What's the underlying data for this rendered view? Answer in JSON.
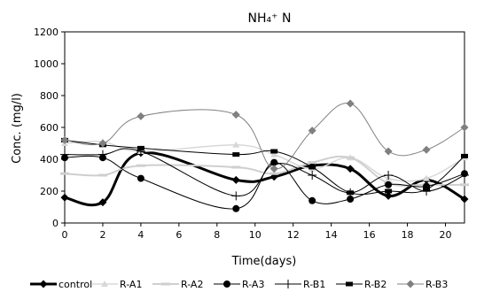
{
  "chart_data": {
    "type": "line",
    "title": "NH₄⁺ N",
    "xlabel": "Time(days)",
    "ylabel": "Conc. (mg/l)",
    "xlim": [
      0,
      21
    ],
    "ylim": [
      0,
      1200
    ],
    "xticks": [
      0,
      2,
      4,
      6,
      8,
      10,
      12,
      14,
      16,
      18,
      20
    ],
    "yticks": [
      0,
      200,
      400,
      600,
      800,
      1000,
      1200
    ],
    "grid": false,
    "legend_position": "bottom",
    "x": [
      0,
      2,
      4,
      9,
      11,
      13,
      15,
      17,
      19,
      21
    ],
    "series": [
      {
        "name": "control",
        "color": "#000000",
        "marker": "diamond",
        "width": 3,
        "values": [
          160,
          130,
          440,
          270,
          290,
          360,
          340,
          170,
          270,
          150
        ]
      },
      {
        "name": "R-A1",
        "color": "#d8d8d8",
        "marker": "triangle",
        "width": 1.5,
        "values": [
          500,
          510,
          450,
          490,
          430,
          340,
          410,
          280,
          280,
          410
        ]
      },
      {
        "name": "R-A2",
        "color": "#cfcfcf",
        "marker": "dash",
        "width": 2,
        "values": [
          310,
          300,
          360,
          350,
          310,
          380,
          410,
          250,
          240,
          240
        ]
      },
      {
        "name": "R-A3",
        "color": "#000000",
        "marker": "circle",
        "width": 1,
        "values": [
          410,
          410,
          280,
          90,
          380,
          140,
          150,
          240,
          230,
          310
        ]
      },
      {
        "name": "R-B1",
        "color": "#000000",
        "marker": "plus",
        "width": 1,
        "values": [
          430,
          430,
          450,
          170,
          370,
          300,
          190,
          300,
          200,
          300
        ]
      },
      {
        "name": "R-B2",
        "color": "#000000",
        "marker": "square",
        "width": 1,
        "values": [
          520,
          490,
          470,
          430,
          450,
          350,
          190,
          200,
          210,
          420
        ]
      },
      {
        "name": "R-B3",
        "color": "#808080",
        "marker": "diamond",
        "width": 1,
        "values": [
          520,
          500,
          670,
          680,
          340,
          580,
          750,
          450,
          460,
          600
        ]
      }
    ]
  }
}
